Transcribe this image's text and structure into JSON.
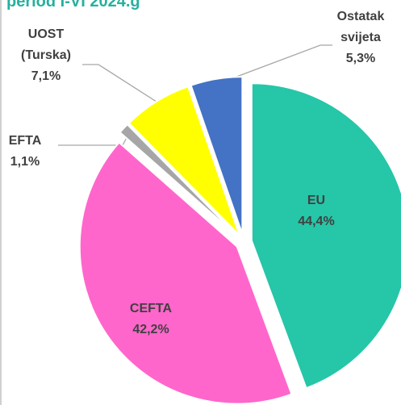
{
  "chart_data": {
    "type": "pie",
    "title": "period I-VI 2024.g",
    "categories": [
      "EU",
      "CEFTA",
      "EFTA",
      "UOST (Turska)",
      "Ostatak svijeta"
    ],
    "values": [
      44.4,
      42.2,
      1.1,
      7.1,
      5.3
    ],
    "value_labels": [
      "44,4%",
      "42,2%",
      "1,1%",
      "7,1%",
      "5,3%"
    ],
    "colors": [
      "#26c6a8",
      "#ff66cc",
      "#a6a6a6",
      "#ffff00",
      "#4472c4"
    ]
  }
}
